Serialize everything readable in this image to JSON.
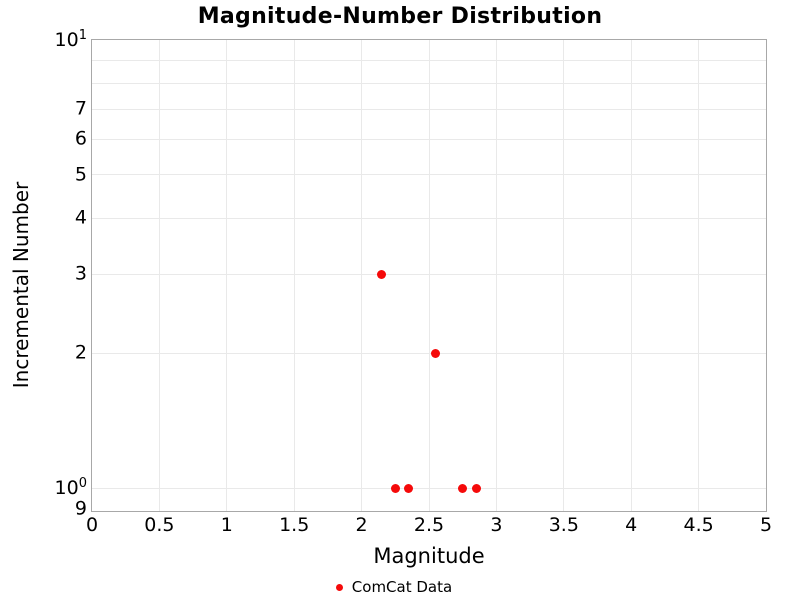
{
  "title": "Magnitude-Number Distribution",
  "axes": {
    "xlabel": "Magnitude",
    "ylabel": "Incremental Number"
  },
  "legend": {
    "label": "ComCat Data"
  },
  "colors": {
    "marker": "#f50a0a",
    "grid": "#e9e9e9",
    "axis_border": "#a8a8a8",
    "text": "#000000",
    "background": "#ffffff"
  },
  "chart_data": {
    "type": "scatter",
    "title": "Magnitude-Number Distribution",
    "xlabel": "Magnitude",
    "ylabel": "Incremental Number",
    "series": [
      {
        "name": "ComCat Data",
        "x": [
          2.15,
          2.25,
          2.35,
          2.55,
          2.75,
          2.85
        ],
        "y": [
          3,
          1,
          1,
          2,
          1,
          1
        ],
        "marker": "circle",
        "color": "#f50a0a"
      }
    ],
    "xlim": [
      0,
      5
    ],
    "ylim": [
      0.89,
      10
    ],
    "yscale": "log",
    "grid": true,
    "legend_position": "bottom-center",
    "x_ticks": [
      {
        "v": 0,
        "t": "0"
      },
      {
        "v": 0.5,
        "t": "0.5"
      },
      {
        "v": 1,
        "t": "1"
      },
      {
        "v": 1.5,
        "t": "1.5"
      },
      {
        "v": 2,
        "t": "2"
      },
      {
        "v": 2.5,
        "t": "2.5"
      },
      {
        "v": 3,
        "t": "3"
      },
      {
        "v": 3.5,
        "t": "3.5"
      },
      {
        "v": 4,
        "t": "4"
      },
      {
        "v": 4.5,
        "t": "4.5"
      },
      {
        "v": 5,
        "t": "5"
      }
    ],
    "y_ticks": [
      {
        "v": 10,
        "t": "10",
        "sup": "1"
      },
      {
        "v": 7,
        "t": "7"
      },
      {
        "v": 6,
        "t": "6"
      },
      {
        "v": 5,
        "t": "5"
      },
      {
        "v": 4,
        "t": "4"
      },
      {
        "v": 3,
        "t": "3"
      },
      {
        "v": 2,
        "t": "2"
      },
      {
        "v": 1,
        "t": "10",
        "sup": "0"
      },
      {
        "v": 0.9,
        "t": "9"
      }
    ],
    "x_gridlines": [
      0.5,
      1,
      1.5,
      2,
      2.5,
      3,
      3.5,
      4,
      4.5
    ],
    "y_gridlines": [
      1,
      2,
      3,
      4,
      5,
      6,
      7,
      8,
      9
    ]
  }
}
